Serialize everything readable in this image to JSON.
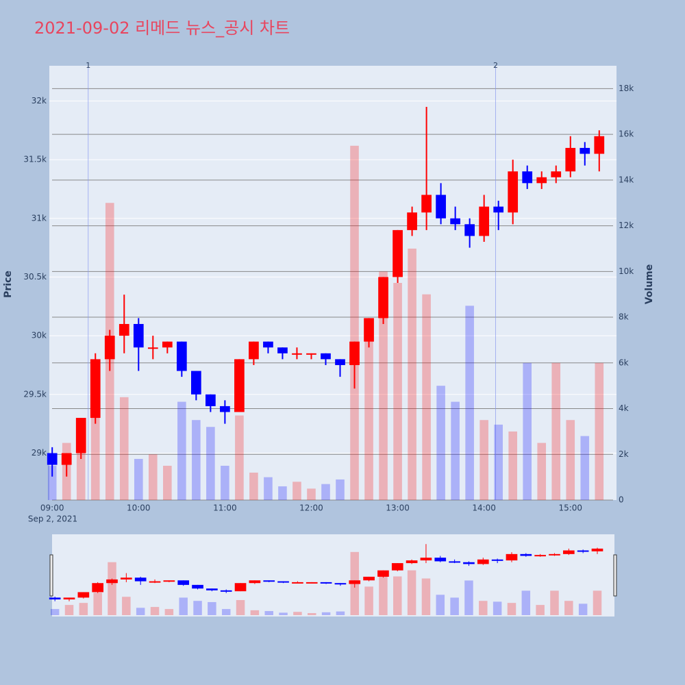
{
  "chart_data": {
    "type": "candlestick",
    "title": "2021-09-02 리메드 뉴스_공시 차트",
    "x": [
      "09:00",
      "09:10",
      "09:20",
      "09:30",
      "09:40",
      "09:50",
      "10:00",
      "10:10",
      "10:20",
      "10:30",
      "10:40",
      "10:50",
      "11:00",
      "11:10",
      "11:20",
      "11:30",
      "11:40",
      "11:50",
      "12:00",
      "12:10",
      "12:20",
      "12:30",
      "12:40",
      "12:50",
      "13:00",
      "13:10",
      "13:20",
      "13:30",
      "13:40",
      "13:50",
      "14:00",
      "14:10",
      "14:20",
      "14:30",
      "14:40",
      "14:50",
      "15:00",
      "15:10",
      "15:20"
    ],
    "open": [
      29000,
      28900,
      29000,
      29300,
      29800,
      30000,
      30100,
      29900,
      29900,
      29950,
      29700,
      29500,
      29400,
      29350,
      29800,
      29950,
      29900,
      29850,
      29850,
      29850,
      29800,
      29750,
      29950,
      30150,
      30500,
      30900,
      31050,
      31200,
      31000,
      30950,
      30850,
      31100,
      31050,
      31400,
      31300,
      31350,
      31400,
      31600,
      31550
    ],
    "high": [
      29050,
      29000,
      29300,
      29850,
      30050,
      30350,
      30150,
      30000,
      29950,
      29950,
      29700,
      29500,
      29450,
      29800,
      29950,
      29950,
      29900,
      29900,
      29850,
      29850,
      29800,
      29950,
      30150,
      30500,
      30900,
      31100,
      31950,
      31300,
      31100,
      31000,
      31200,
      31150,
      31500,
      31450,
      31400,
      31450,
      31700,
      31650,
      31750
    ],
    "low": [
      28800,
      28800,
      28950,
      29250,
      29700,
      29850,
      29700,
      29800,
      29850,
      29650,
      29450,
      29350,
      29250,
      29350,
      29750,
      29850,
      29800,
      29800,
      29800,
      29750,
      29650,
      29550,
      29900,
      30100,
      30450,
      30850,
      30900,
      30950,
      30900,
      30750,
      30800,
      30900,
      30950,
      31250,
      31250,
      31300,
      31350,
      31450,
      31400
    ],
    "close": [
      28900,
      29000,
      29300,
      29800,
      30000,
      30100,
      29900,
      29900,
      29950,
      29700,
      29500,
      29400,
      29350,
      29800,
      29950,
      29900,
      29850,
      29850,
      29850,
      29800,
      29750,
      29950,
      30150,
      30500,
      30900,
      31050,
      31200,
      31000,
      30950,
      30850,
      31100,
      31050,
      31400,
      31300,
      31350,
      31400,
      31600,
      31550,
      31700
    ],
    "volume": [
      1500,
      2500,
      3000,
      5500,
      13000,
      4500,
      1800,
      2000,
      1500,
      4300,
      3500,
      3200,
      1500,
      3700,
      1200,
      1000,
      600,
      800,
      500,
      700,
      900,
      15500,
      7000,
      10000,
      9500,
      11000,
      9000,
      5000,
      4300,
      8500,
      3500,
      3300,
      3000,
      6000,
      2500,
      6000,
      3500,
      2800,
      6000
    ],
    "increasing_color": "#ff0000",
    "decreasing_color": "#0000ff",
    "xlim": [
      "08:58",
      "15:32"
    ],
    "xticks": [
      "09:00",
      "10:00",
      "11:00",
      "12:00",
      "13:00",
      "14:00",
      "15:00"
    ],
    "date_label": "Sep 2, 2021",
    "ylim": [
      28600,
      32300
    ],
    "yticks": [
      {
        "value": 29000,
        "label": "29k"
      },
      {
        "value": 29500,
        "label": "29.5k"
      },
      {
        "value": 30000,
        "label": "30k"
      },
      {
        "value": 30500,
        "label": "30.5k"
      },
      {
        "value": 31000,
        "label": "31k"
      },
      {
        "value": 31500,
        "label": "31.5k"
      },
      {
        "value": 32000,
        "label": "32k"
      }
    ],
    "y_title": "Price",
    "y2lim": [
      0,
      19000
    ],
    "y2ticks": [
      0,
      {
        "value": 2000,
        "label": "2k"
      },
      {
        "value": 4000,
        "label": "4k"
      },
      {
        "value": 6000,
        "label": "6k"
      },
      {
        "value": 8000,
        "label": "8k"
      },
      {
        "value": 10000,
        "label": "10k"
      },
      {
        "value": 12000,
        "label": "12k"
      },
      {
        "value": 14000,
        "label": "14k"
      },
      {
        "value": 16000,
        "label": "16k"
      },
      {
        "value": 18000,
        "label": "18k"
      }
    ],
    "y2_title": "Volume",
    "annotations": [
      {
        "x": "09:25",
        "text": "1"
      },
      {
        "x": "14:08",
        "text": "2"
      }
    ],
    "rangeslider": true
  }
}
